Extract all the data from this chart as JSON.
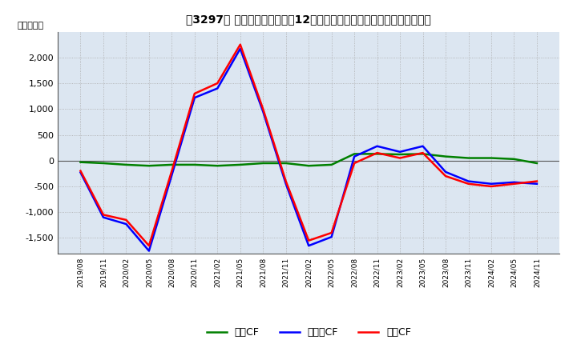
{
  "title": "[3297]  キャッシュフローの12か月移動合計の対前年同期増減額の推移",
  "title_bracket": "　3297、",
  "ylabel": "（百万円）",
  "ylim": [
    -1800,
    2500
  ],
  "yticks": [
    -1500,
    -1000,
    -500,
    0,
    500,
    1000,
    1500,
    2000
  ],
  "legend": [
    "営業CF",
    "投資CF",
    "フリーCF"
  ],
  "colors": [
    "#ff0000",
    "#008000",
    "#0000ff"
  ],
  "bg_color": "#dce6f1",
  "grid_color": "#aaaaaa",
  "x_labels": [
    "2019/08",
    "2019/11",
    "2020/02",
    "2020/05",
    "2020/08",
    "2020/11",
    "2021/02",
    "2021/05",
    "2021/08",
    "2021/11",
    "2022/02",
    "2022/05",
    "2022/08",
    "2022/11",
    "2023/02",
    "2023/05",
    "2023/08",
    "2023/11",
    "2024/02",
    "2024/05",
    "2024/11"
  ],
  "operating_cf": [
    -200,
    -1050,
    -1150,
    -1650,
    -200,
    1300,
    1500,
    2250,
    1000,
    -400,
    -1550,
    -1400,
    -50,
    150,
    50,
    150,
    -300,
    -450,
    -500,
    -450,
    -400
  ],
  "investing_cf": [
    -30,
    -50,
    -80,
    -100,
    -80,
    -80,
    -100,
    -80,
    -50,
    -50,
    -100,
    -80,
    130,
    130,
    120,
    130,
    80,
    50,
    50,
    30,
    -50
  ],
  "free_cf": [
    -230,
    -1100,
    -1230,
    -1750,
    -280,
    1220,
    1400,
    2170,
    950,
    -450,
    -1650,
    -1480,
    80,
    280,
    170,
    280,
    -220,
    -400,
    -450,
    -420,
    -450
  ]
}
